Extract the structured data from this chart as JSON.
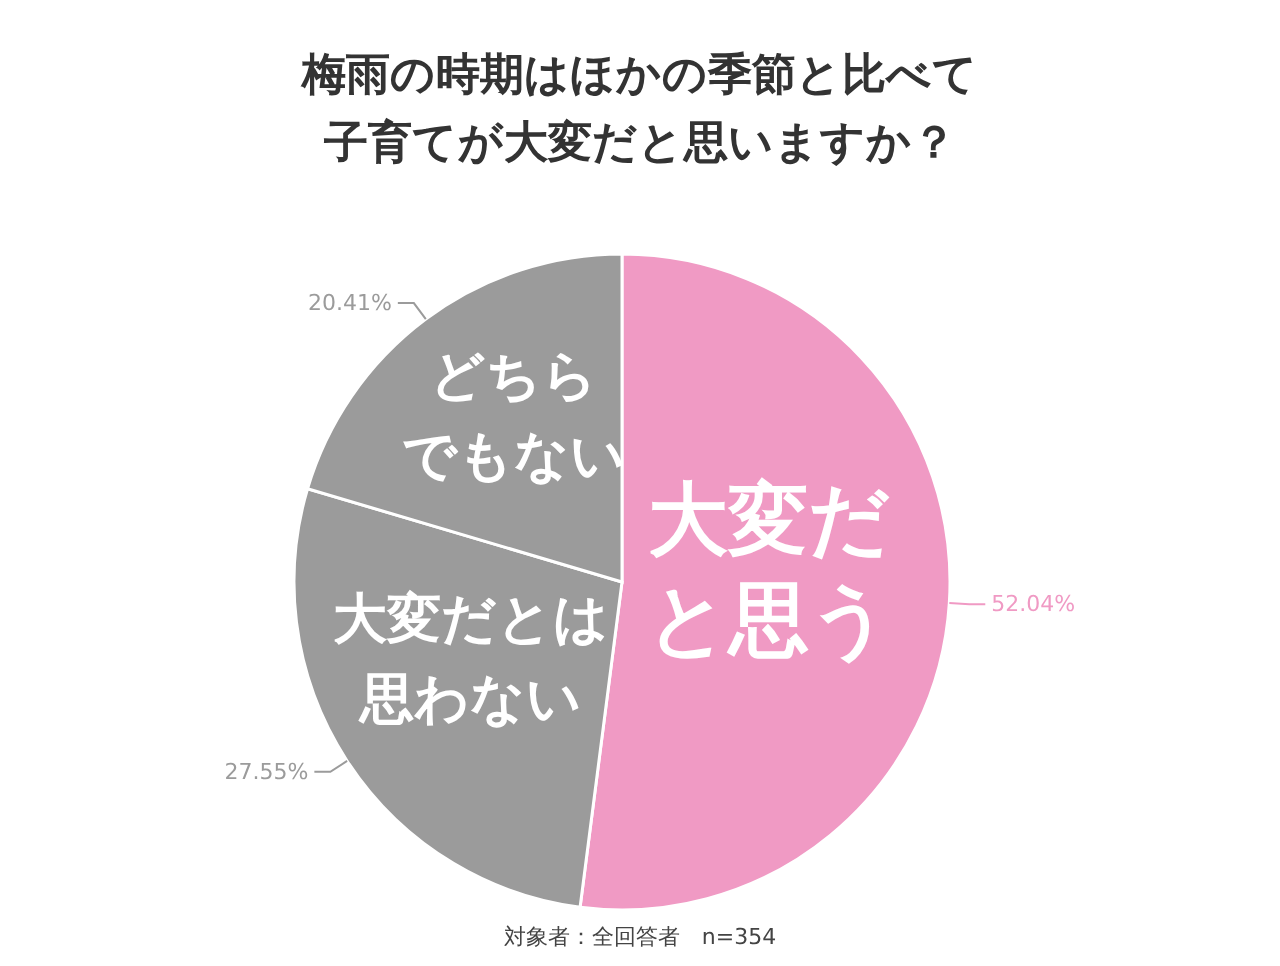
{
  "chart_data": {
    "type": "pie",
    "title": "梅雨の時期はほかの季節と比べて子育てが大変だと思いますか？",
    "categories": [
      "大変だと思う",
      "大変だとは思わない",
      "どちらでもない"
    ],
    "values": [
      52.04,
      27.55,
      20.41
    ],
    "colors": [
      "#f09ac4",
      "#9b9b9b",
      "#9b9b9b"
    ],
    "value_labels": [
      "52.04%",
      "27.55%",
      "20.41%"
    ],
    "annotations": [
      "対象者：全回答者　n=354"
    ]
  }
}
